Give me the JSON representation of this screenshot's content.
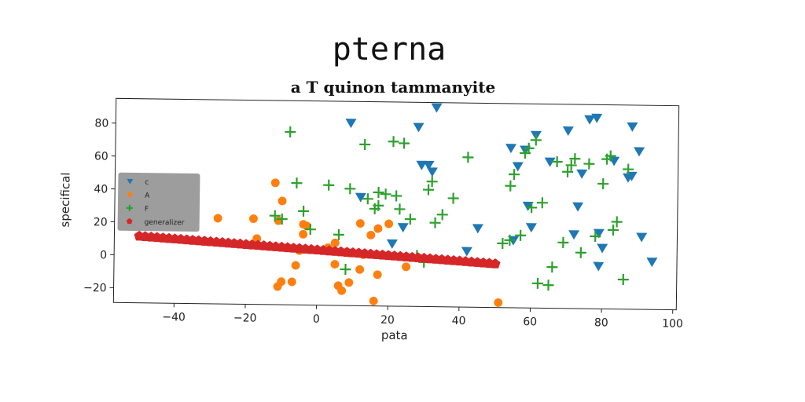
{
  "chart_data": {
    "type": "scatter",
    "title": "pterna",
    "subtitle": "a T quinon tammanyite",
    "xlabel": "pata",
    "ylabel": "specifical",
    "xlim": [
      -57,
      101
    ],
    "ylim": [
      -29,
      95
    ],
    "xticks": [
      -40,
      -20,
      0,
      20,
      40,
      60,
      80,
      100
    ],
    "yticks": [
      -20,
      0,
      20,
      40,
      60,
      80
    ],
    "grid": false,
    "legend_position": "center-left",
    "series": [
      {
        "name": "c",
        "marker": "triangle-down",
        "color": "#1f77b4",
        "points": [
          [
            9,
            82
          ],
          [
            12,
            37
          ],
          [
            21,
            9
          ],
          [
            24,
            19
          ],
          [
            28,
            80
          ],
          [
            29,
            57
          ],
          [
            31,
            57
          ],
          [
            32,
            53
          ],
          [
            33,
            92
          ],
          [
            42,
            5
          ],
          [
            45,
            19
          ],
          [
            54,
            68
          ],
          [
            55,
            12
          ],
          [
            56,
            57
          ],
          [
            58,
            67
          ],
          [
            59,
            33
          ],
          [
            60,
            20
          ],
          [
            61,
            76
          ],
          [
            65,
            60
          ],
          [
            70,
            79
          ],
          [
            72,
            16
          ],
          [
            73,
            33
          ],
          [
            74,
            53
          ],
          [
            76,
            86
          ],
          [
            78,
            87
          ],
          [
            79,
            17
          ],
          [
            79,
            -3
          ],
          [
            80,
            8
          ],
          [
            83,
            61
          ],
          [
            87,
            51
          ],
          [
            88,
            82
          ],
          [
            88,
            52
          ],
          [
            90,
            67
          ],
          [
            91,
            15
          ],
          [
            94,
            0
          ]
        ]
      },
      {
        "name": "A",
        "marker": "circle",
        "color": "#ff7f0e",
        "points": [
          [
            -28,
            23
          ],
          [
            -18,
            23
          ],
          [
            -17,
            11
          ],
          [
            -12,
            45
          ],
          [
            -11,
            22
          ],
          [
            -10,
            34
          ],
          [
            -11,
            -18
          ],
          [
            -10,
            -15
          ],
          [
            -7,
            -15
          ],
          [
            -6,
            -5
          ],
          [
            -5,
            4
          ],
          [
            -4,
            14
          ],
          [
            -4,
            20
          ],
          [
            -3,
            19
          ],
          [
            3,
            6
          ],
          [
            4,
            4
          ],
          [
            5,
            9
          ],
          [
            5,
            -4
          ],
          [
            6,
            -17
          ],
          [
            7,
            -20
          ],
          [
            9,
            3
          ],
          [
            9,
            -15
          ],
          [
            12,
            21
          ],
          [
            12,
            -7
          ],
          [
            13,
            2
          ],
          [
            15,
            14
          ],
          [
            16,
            -26
          ],
          [
            17,
            18
          ],
          [
            17,
            -10
          ],
          [
            20,
            21
          ],
          [
            25,
            -5
          ],
          [
            51,
            -26
          ]
        ]
      },
      {
        "name": "F",
        "marker": "plus",
        "color": "#2ca02c",
        "points": [
          [
            -12,
            25
          ],
          [
            -8,
            76
          ],
          [
            -10,
            23
          ],
          [
            -6,
            45
          ],
          [
            -4,
            28
          ],
          [
            -2,
            17
          ],
          [
            3,
            44
          ],
          [
            6,
            14
          ],
          [
            8,
            -7
          ],
          [
            9,
            42
          ],
          [
            13,
            69
          ],
          [
            14,
            36
          ],
          [
            16,
            30
          ],
          [
            17,
            32
          ],
          [
            17,
            40
          ],
          [
            19,
            39
          ],
          [
            21,
            71
          ],
          [
            22,
            38
          ],
          [
            23,
            30
          ],
          [
            24,
            70
          ],
          [
            26,
            24
          ],
          [
            28,
            2
          ],
          [
            30,
            -2
          ],
          [
            31,
            42
          ],
          [
            32,
            47
          ],
          [
            33,
            22
          ],
          [
            35,
            27
          ],
          [
            38,
            37
          ],
          [
            42,
            62
          ],
          [
            52,
            10
          ],
          [
            54,
            12
          ],
          [
            54,
            45
          ],
          [
            55,
            52
          ],
          [
            57,
            15
          ],
          [
            58,
            65
          ],
          [
            59,
            68
          ],
          [
            60,
            32
          ],
          [
            61,
            73
          ],
          [
            62,
            -14
          ],
          [
            63,
            35
          ],
          [
            65,
            -15
          ],
          [
            66,
            -4
          ],
          [
            67,
            60
          ],
          [
            69,
            11
          ],
          [
            70,
            54
          ],
          [
            71,
            58
          ],
          [
            72,
            62
          ],
          [
            74,
            5
          ],
          [
            76,
            59
          ],
          [
            78,
            15
          ],
          [
            80,
            47
          ],
          [
            81,
            62
          ],
          [
            82,
            64
          ],
          [
            83,
            19
          ],
          [
            84,
            24
          ],
          [
            86,
            -11
          ],
          [
            87,
            56
          ]
        ]
      },
      {
        "name": "generalizer",
        "marker": "pentagon",
        "color": "#d62728",
        "line": {
          "x_from": -50,
          "x_to": 50,
          "y_at_x_from": 11.5,
          "y_at_x_to": -2.5,
          "count": 61
        }
      }
    ]
  }
}
